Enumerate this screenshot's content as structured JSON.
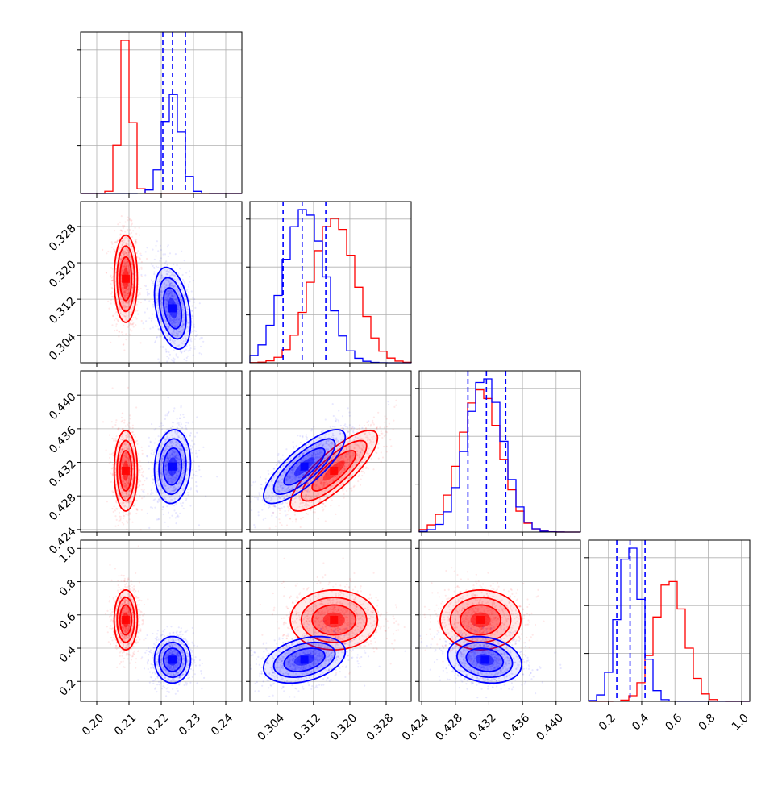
{
  "chart_data": {
    "type": "corner",
    "title": "",
    "parameters": [
      {
        "label": "",
        "range": [
          0.195,
          0.245
        ],
        "ticks": [
          "0.20",
          "0.21",
          "0.22",
          "0.23",
          "0.24"
        ]
      },
      {
        "label": "",
        "range": [
          0.298,
          0.3335
        ],
        "ticks": [
          "0.304",
          "0.312",
          "0.320",
          "0.328"
        ]
      },
      {
        "label": "",
        "range": [
          0.4237,
          0.4429
        ],
        "ticks": [
          "0.424",
          "0.428",
          "0.432",
          "0.436",
          "0.440"
        ]
      },
      {
        "label": "",
        "range": [
          0.08,
          1.05
        ],
        "ticks": [
          "0.2",
          "0.4",
          "0.6",
          "0.8",
          "1.0"
        ]
      }
    ],
    "series": [
      {
        "name": "",
        "color": "#ff0000",
        "mean": [
          0.209,
          0.3165,
          0.431,
          0.57
        ],
        "sd": [
          0.0018,
          0.0048,
          0.0024,
          0.09
        ],
        "corr": [
          [
            1,
            0,
            0,
            0
          ],
          [
            0,
            1,
            0.82,
            0
          ],
          [
            0,
            0.82,
            1,
            0
          ],
          [
            0,
            0,
            0,
            1
          ]
        ]
      },
      {
        "name": "",
        "color": "#0000ff",
        "mean": [
          0.2235,
          0.31,
          0.4315,
          0.33
        ],
        "sd": [
          0.0028,
          0.0045,
          0.0022,
          0.07
        ],
        "corr": [
          [
            1,
            -0.35,
            0.1,
            0
          ],
          [
            -0.35,
            1,
            0.8,
            0.35
          ],
          [
            0.1,
            0.8,
            1,
            -0.2
          ],
          [
            0,
            0.35,
            -0.2,
            1
          ]
        ]
      }
    ],
    "quantile_lines": {
      "color": "#0000ff",
      "style": "dashed",
      "values": [
        [
          0.2205,
          0.2235,
          0.2275
        ],
        [
          0.3053,
          0.3095,
          0.3147
        ],
        [
          0.4295,
          0.4317,
          0.434
        ],
        [
          0.25,
          0.33,
          0.42
        ]
      ]
    },
    "grid": true,
    "legend": "none"
  }
}
